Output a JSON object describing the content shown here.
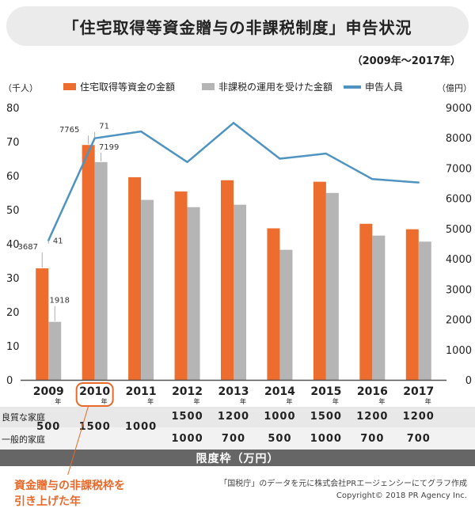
{
  "title": "「住宅取得等資金贈与の非課税制度」申告状況",
  "period": "（2009年〜2017年）",
  "legend": {
    "series1": "住宅取得等資金の金額",
    "series2": "非課税の運用を受けた金額",
    "series3": "申告人員"
  },
  "colors": {
    "series1": "#ec6d2d",
    "series2": "#b5b5b5",
    "series3": "#4f94c0",
    "note": "#e8692a",
    "band": "#e8e8e8",
    "quotaBar": "#666666"
  },
  "chart_data": {
    "type": "bar",
    "categories": [
      "2009",
      "2010",
      "2011",
      "2012",
      "2013",
      "2014",
      "2015",
      "2016",
      "2017"
    ],
    "year_suffix": "年",
    "left_axis": {
      "unit": "（千人）",
      "ylim": [
        0,
        80
      ],
      "ticks": [
        "0",
        "10",
        "20",
        "30",
        "40",
        "50",
        "60",
        "70",
        "80"
      ]
    },
    "right_axis": {
      "unit": "（億円）",
      "ylim": [
        0,
        9000
      ],
      "ticks": [
        "0",
        "1000",
        "2000",
        "3000",
        "4000",
        "5000",
        "6000",
        "7000",
        "8000",
        "9000"
      ]
    },
    "series": [
      {
        "values": [
          3687,
          7765,
          6700,
          6230,
          6600,
          5010,
          6550,
          5160,
          4980
        ],
        "axis": "right"
      },
      {
        "values": [
          1918,
          7199,
          5950,
          5710,
          5790,
          4300,
          6180,
          4770,
          4570
        ],
        "axis": "right"
      },
      {
        "values": [
          41,
          71,
          73,
          64,
          75.5,
          65,
          66.5,
          59,
          58
        ],
        "axis": "left"
      }
    ],
    "annotations": [
      {
        "text": "3687",
        "category": "2009",
        "series": 0
      },
      {
        "text": "41",
        "category": "2009",
        "series": 2
      },
      {
        "text": "1918",
        "category": "2009",
        "series": 1
      },
      {
        "text": "7765",
        "category": "2010",
        "series": 0
      },
      {
        "text": "71",
        "category": "2010",
        "series": 2
      },
      {
        "text": "7199",
        "category": "2010",
        "series": 1
      }
    ],
    "highlight_category": "2010",
    "grid": false
  },
  "quota": {
    "good_label": "良質な家庭",
    "general_label": "一般的家庭",
    "footer": "限度枠（万円）",
    "single": [
      {
        "category": "2009",
        "value": "500"
      },
      {
        "category": "2010",
        "value": "1500"
      },
      {
        "category": "2011",
        "value": "1000"
      }
    ],
    "good": [
      {
        "category": "2012",
        "value": "1500"
      },
      {
        "category": "2013",
        "value": "1200"
      },
      {
        "category": "2014",
        "value": "1000"
      },
      {
        "category": "2015",
        "value": "1500"
      },
      {
        "category": "2016",
        "value": "1200"
      },
      {
        "category": "2017",
        "value": "1200"
      }
    ],
    "general": [
      {
        "category": "2012",
        "value": "1000"
      },
      {
        "category": "2013",
        "value": "700"
      },
      {
        "category": "2014",
        "value": "500"
      },
      {
        "category": "2015",
        "value": "1000"
      },
      {
        "category": "2016",
        "value": "700"
      },
      {
        "category": "2017",
        "value": "700"
      }
    ]
  },
  "note_lines": [
    "資金贈与の非課税枠を",
    "引き上げた年"
  ],
  "source_lines": [
    "「国税庁」のデータを元に株式会社PRエージェンシーにてグラフ作成",
    "Copyright© 2018 PR Agency Inc."
  ]
}
